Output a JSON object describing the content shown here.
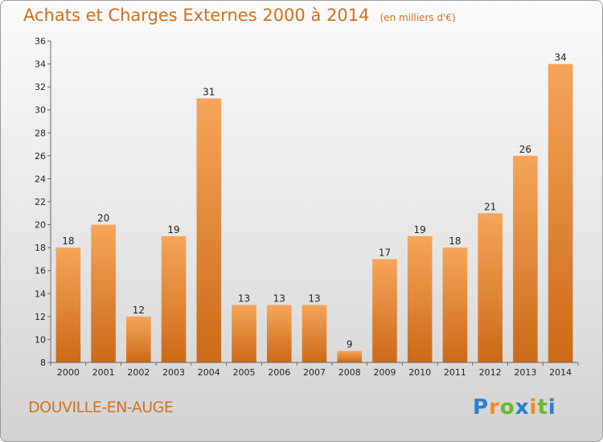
{
  "chart_data": {
    "type": "bar",
    "title": "Achats et Charges Externes 2000 à 2014",
    "subtitle": "(en milliers d'€)",
    "categories": [
      "2000",
      "2001",
      "2002",
      "2003",
      "2004",
      "2005",
      "2006",
      "2007",
      "2008",
      "2009",
      "2010",
      "2011",
      "2012",
      "2013",
      "2014"
    ],
    "values": [
      18,
      20,
      12,
      19,
      31,
      13,
      13,
      13,
      9,
      17,
      19,
      18,
      21,
      26,
      34
    ],
    "ylim": [
      8,
      36
    ],
    "yticks": [
      8,
      10,
      12,
      14,
      16,
      18,
      20,
      22,
      24,
      26,
      28,
      30,
      32,
      34,
      36
    ],
    "xlabel": "",
    "ylabel": "",
    "grid": false,
    "legend": "none",
    "bar_color": "#f0903a",
    "bar_color_dark": "#c86515"
  },
  "footer": {
    "place_name": "DOUVILLE-EN-AUGE",
    "brand": "Proxiti"
  },
  "colors": {
    "title": "#d4701c",
    "axis": "#666666",
    "brand_blue": "#2a7fd0",
    "brand_orange": "#f08a1c",
    "brand_green": "#6ab82c"
  }
}
